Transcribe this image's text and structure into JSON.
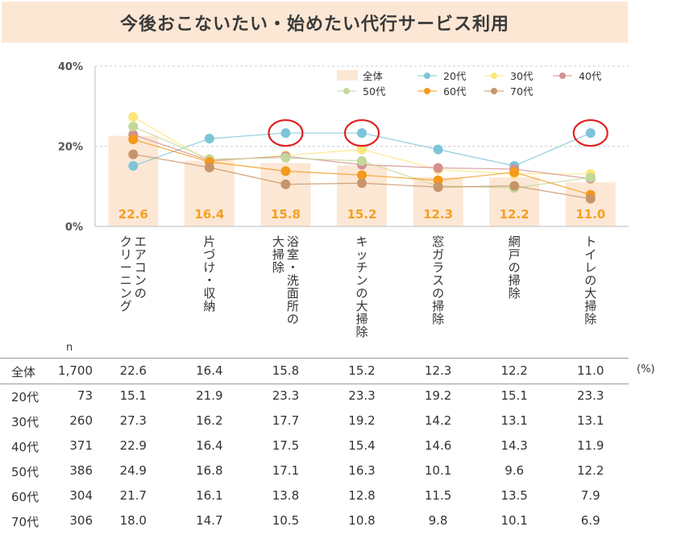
{
  "title": "今後おこないたい・始めたい代行サービス利用",
  "colors": {
    "title_bg": "#fce7d5",
    "bar": "#fce7d5",
    "bar_label": "#f4a020",
    "series": {
      "全体": "#fce7d5",
      "20代": "#7ec4d8",
      "30代": "#fde67a",
      "40代": "#d49090",
      "50代": "#c3d89a",
      "60代": "#f59a1a",
      "70代": "#c8946a"
    },
    "highlight_circle": "#e02020"
  },
  "chart_data": {
    "type": "bar",
    "categories": [
      "エアコンのクリーニング",
      "片づけ・収納",
      "浴室・洗面所の大掃除",
      "キッチンの大掃除",
      "窓ガラスの掃除",
      "網戸の掃除",
      "トイレの大掃除"
    ],
    "y_ticks": [
      "0%",
      "20%",
      "40%"
    ],
    "ylim": [
      0,
      40
    ],
    "unit": "%",
    "grid": true,
    "legend_position": "top-right",
    "bar_series": "全体",
    "bar_labels": [
      "22.6",
      "16.4",
      "15.8",
      "15.2",
      "12.3",
      "12.2",
      "11.0"
    ],
    "series": [
      {
        "name": "全体",
        "values": [
          22.6,
          16.4,
          15.8,
          15.2,
          12.3,
          12.2,
          11.0
        ]
      },
      {
        "name": "20代",
        "values": [
          15.1,
          21.9,
          23.3,
          23.3,
          19.2,
          15.1,
          23.3
        ]
      },
      {
        "name": "30代",
        "values": [
          27.3,
          16.2,
          17.7,
          19.2,
          14.2,
          13.1,
          13.1
        ]
      },
      {
        "name": "40代",
        "values": [
          22.9,
          16.4,
          17.5,
          15.4,
          14.6,
          14.3,
          11.9
        ]
      },
      {
        "name": "50代",
        "values": [
          24.9,
          16.8,
          17.1,
          16.3,
          10.1,
          9.6,
          12.2
        ]
      },
      {
        "name": "60代",
        "values": [
          21.7,
          16.1,
          13.8,
          12.8,
          11.5,
          13.5,
          7.9
        ]
      },
      {
        "name": "70代",
        "values": [
          18.0,
          14.7,
          10.5,
          10.8,
          9.8,
          10.1,
          6.9
        ]
      }
    ],
    "highlighted": [
      {
        "series": "20代",
        "index": 2
      },
      {
        "series": "20代",
        "index": 3
      },
      {
        "series": "20代",
        "index": 6
      }
    ]
  },
  "table": {
    "n_header": "n",
    "unit": "(%)",
    "rows": [
      {
        "label": "全体",
        "n": "1,700",
        "values": [
          "22.6",
          "16.4",
          "15.8",
          "15.2",
          "12.3",
          "12.2",
          "11.0"
        ]
      },
      {
        "label": "20代",
        "n": "73",
        "values": [
          "15.1",
          "21.9",
          "23.3",
          "23.3",
          "19.2",
          "15.1",
          "23.3"
        ]
      },
      {
        "label": "30代",
        "n": "260",
        "values": [
          "27.3",
          "16.2",
          "17.7",
          "19.2",
          "14.2",
          "13.1",
          "13.1"
        ]
      },
      {
        "label": "40代",
        "n": "371",
        "values": [
          "22.9",
          "16.4",
          "17.5",
          "15.4",
          "14.6",
          "14.3",
          "11.9"
        ]
      },
      {
        "label": "50代",
        "n": "386",
        "values": [
          "24.9",
          "16.8",
          "17.1",
          "16.3",
          "10.1",
          "9.6",
          "12.2"
        ]
      },
      {
        "label": "60代",
        "n": "304",
        "values": [
          "21.7",
          "16.1",
          "13.8",
          "12.8",
          "11.5",
          "13.5",
          "7.9"
        ]
      },
      {
        "label": "70代",
        "n": "306",
        "values": [
          "18.0",
          "14.7",
          "10.5",
          "10.8",
          "9.8",
          "10.1",
          "6.9"
        ]
      }
    ]
  }
}
